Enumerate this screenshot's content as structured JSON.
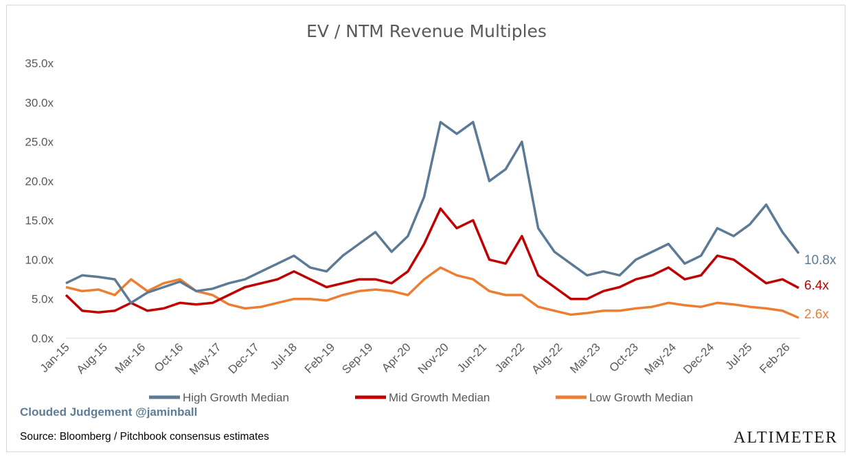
{
  "chart_data": {
    "type": "line",
    "title": "EV / NTM Revenue Multiples",
    "xlabel": "",
    "ylabel": "",
    "x_tick_labels": [
      "Jan-15",
      "Aug-15",
      "Mar-16",
      "Oct-16",
      "May-17",
      "Dec-17",
      "Jul-18",
      "Feb-19",
      "Sep-19",
      "Apr-20",
      "Nov-20",
      "Jun-21",
      "Jan-22",
      "Aug-22",
      "Mar-23",
      "Oct-23",
      "May-24",
      "Dec-24",
      "Jul-25",
      "Feb-26"
    ],
    "y_tick_labels": [
      "0.0x",
      "5.0x",
      "10.0x",
      "15.0x",
      "20.0x",
      "25.0x",
      "30.0x",
      "35.0x"
    ],
    "ylim": [
      0,
      35
    ],
    "grid": false,
    "legend_position": "bottom",
    "x": [
      "Jan-15",
      "Apr-15",
      "Jul-15",
      "Oct-15",
      "Jan-16",
      "Apr-16",
      "Jul-16",
      "Oct-16",
      "Jan-17",
      "Apr-17",
      "Jul-17",
      "Oct-17",
      "Jan-18",
      "Apr-18",
      "Jul-18",
      "Oct-18",
      "Jan-19",
      "Apr-19",
      "Jul-19",
      "Oct-19",
      "Jan-20",
      "Apr-20",
      "Jul-20",
      "Oct-20",
      "Jan-21",
      "Apr-21",
      "Jul-21",
      "Oct-21",
      "Jan-22",
      "Apr-22",
      "Jul-22",
      "Oct-22",
      "Jan-23",
      "Apr-23",
      "Jul-23",
      "Oct-23",
      "Jan-24",
      "Apr-24",
      "Jul-24",
      "Oct-24",
      "Jan-25",
      "Apr-25",
      "Jul-25",
      "Oct-25",
      "Jan-26",
      "Feb-26"
    ],
    "series": [
      {
        "name": "High Growth Median",
        "color": "#5b7a95",
        "end_label": "10.8x",
        "values": [
          7.0,
          8.0,
          7.8,
          7.5,
          4.5,
          5.8,
          6.5,
          7.2,
          6.0,
          6.3,
          7.0,
          7.5,
          8.5,
          9.5,
          10.5,
          9.0,
          8.5,
          10.5,
          12.0,
          13.5,
          11.0,
          13.0,
          18.0,
          27.5,
          26.0,
          27.5,
          20.0,
          21.5,
          25.0,
          14.0,
          11.0,
          9.5,
          8.0,
          8.5,
          8.0,
          10.0,
          11.0,
          12.0,
          9.5,
          10.5,
          14.0,
          13.0,
          14.5,
          17.0,
          13.5,
          10.8
        ]
      },
      {
        "name": "Mid Growth Median",
        "color": "#c00000",
        "end_label": "6.4x",
        "values": [
          5.5,
          3.5,
          3.3,
          3.5,
          4.5,
          3.5,
          3.8,
          4.5,
          4.3,
          4.5,
          5.5,
          6.5,
          7.0,
          7.5,
          8.5,
          7.5,
          6.5,
          7.0,
          7.5,
          7.5,
          7.0,
          8.5,
          12.0,
          16.5,
          14.0,
          15.0,
          10.0,
          9.5,
          13.0,
          8.0,
          6.5,
          5.0,
          5.0,
          6.0,
          6.5,
          7.5,
          8.0,
          9.0,
          7.5,
          8.0,
          10.5,
          10.0,
          8.5,
          7.0,
          7.5,
          6.4
        ]
      },
      {
        "name": "Low Growth Median",
        "color": "#ed7d31",
        "end_label": "2.6x",
        "values": [
          6.5,
          6.0,
          6.2,
          5.5,
          7.5,
          6.0,
          7.0,
          7.5,
          6.0,
          5.5,
          4.3,
          3.8,
          4.0,
          4.5,
          5.0,
          5.0,
          4.8,
          5.5,
          6.0,
          6.2,
          6.0,
          5.5,
          7.5,
          9.0,
          8.0,
          7.5,
          6.0,
          5.5,
          5.5,
          4.0,
          3.5,
          3.0,
          3.2,
          3.5,
          3.5,
          3.8,
          4.0,
          4.5,
          4.2,
          4.0,
          4.5,
          4.3,
          4.0,
          3.8,
          3.5,
          2.6
        ]
      }
    ]
  },
  "footer": {
    "watermark": "Clouded Judgement @jaminball",
    "source": "Source: Bloomberg / Pitchbook consensus estimates",
    "brand": "ALTIMETER"
  }
}
